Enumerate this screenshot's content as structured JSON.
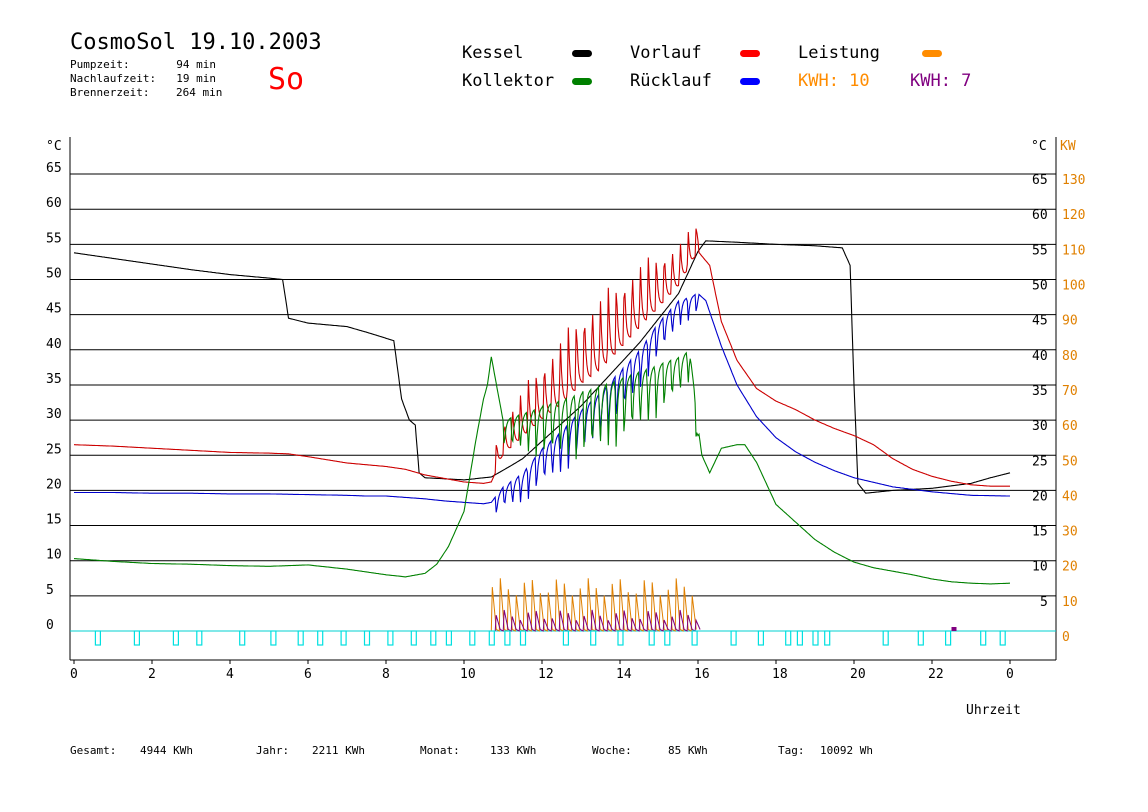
{
  "header": {
    "title": "CosmoSol 19.10.2003",
    "day": "So",
    "stats": [
      {
        "label": "Pumpzeit:",
        "value": "94 min"
      },
      {
        "label": "Nachlaufzeit:",
        "value": "19 min"
      },
      {
        "label": "Brennerzeit:",
        "value": "264 min"
      }
    ]
  },
  "legend": {
    "kessel": "Kessel",
    "vorlauf": "Vorlauf",
    "leistung": "Leistung",
    "kollektor": "Kollektor",
    "ruecklauf": "Rücklauf",
    "kwh1": "KWH: 10",
    "kwh2": "KWH: 7"
  },
  "colors": {
    "kessel": "#000000",
    "vorlauf": "#ff0000",
    "vorlauf_line": "#cc0000",
    "ruecklauf": "#0000ff",
    "ruecklauf_line": "#0000cc",
    "kollektor": "#008000",
    "leistung": "#ff8c00",
    "leistung_line": "#e08000",
    "kwh2": "#800080",
    "burner": "#00e0e0",
    "axis_right": "#e08000"
  },
  "footer": [
    {
      "label": "Gesamt:",
      "value": "4944 KWh"
    },
    {
      "label": "Jahr:",
      "value": "2211 KWh"
    },
    {
      "label": "Monat:",
      "value": "133 KWh"
    },
    {
      "label": "Woche:",
      "value": "85 KWh"
    },
    {
      "label": "Tag:",
      "value": "10092 Wh"
    }
  ],
  "chart_data": {
    "type": "line",
    "xlabel": "Uhrzeit",
    "ylabel_left": "°C",
    "ylabel_right_c": "°C",
    "ylabel_right_kw": "KW",
    "xlim": [
      0,
      24
    ],
    "ylim": [
      0,
      70
    ],
    "ylim_right_kw": [
      0,
      140
    ],
    "x_ticks": [
      "0",
      "2",
      "4",
      "6",
      "8",
      "10",
      "12",
      "14",
      "16",
      "18",
      "20",
      "22",
      "0"
    ],
    "y_ticks_left": [
      "0",
      "5",
      "10",
      "15",
      "20",
      "25",
      "30",
      "35",
      "40",
      "45",
      "50",
      "55",
      "60",
      "65"
    ],
    "y_ticks_right_c": [
      "5",
      "10",
      "15",
      "20",
      "25",
      "30",
      "35",
      "40",
      "45",
      "50",
      "55",
      "60",
      "65"
    ],
    "y_ticks_right_kw": [
      "0",
      "10",
      "20",
      "30",
      "40",
      "50",
      "60",
      "70",
      "80",
      "90",
      "100",
      "110",
      "120",
      "130"
    ],
    "grid": true,
    "series": [
      {
        "name": "Kessel",
        "color_key": "kessel",
        "x": [
          0,
          1,
          2,
          3,
          4,
          5,
          5.35,
          5.5,
          6,
          7,
          7.5,
          8.2,
          8.4,
          8.6,
          8.75,
          8.85,
          9,
          10,
          10.7,
          11.2,
          11.5,
          12,
          12.5,
          13,
          13.5,
          14,
          14.5,
          15,
          15.5,
          16,
          16.2,
          17,
          18,
          19,
          19.7,
          19.9,
          20,
          20.1,
          20.3,
          21,
          22,
          23,
          23.5,
          24
        ],
        "y": [
          53.8,
          53,
          52.2,
          51.4,
          50.7,
          50.2,
          50,
          44.5,
          43.8,
          43.3,
          42.5,
          41.3,
          33,
          30,
          29.3,
          22.5,
          21.8,
          21.5,
          21.9,
          23.5,
          24.5,
          27,
          29.5,
          32,
          35,
          38,
          41,
          44.5,
          48,
          54,
          55.5,
          55.3,
          55,
          54.8,
          54.5,
          52,
          35,
          21,
          19.6,
          20,
          20.3,
          21,
          21.8,
          22.5
        ]
      },
      {
        "name": "Vorlauf",
        "color_key": "vorlauf_line",
        "x": [
          0,
          1,
          2,
          3,
          4,
          5,
          5.5,
          6,
          7,
          8,
          8.5,
          9,
          9.5,
          10,
          10.5,
          10.7,
          11,
          11.5,
          12,
          12.5,
          13,
          13.5,
          14,
          14.5,
          15,
          15.5,
          16,
          16.3,
          16.6,
          17,
          17.5,
          18,
          18.5,
          19,
          19.5,
          20,
          20.5,
          21,
          21.5,
          22,
          22.5,
          23,
          23.5,
          24
        ],
        "y": [
          26.5,
          26.3,
          26,
          25.7,
          25.4,
          25.3,
          25.2,
          24.8,
          23.9,
          23.4,
          23,
          22.2,
          21.7,
          21.2,
          21,
          21.2,
          25,
          27.5,
          30,
          32,
          35,
          37,
          40,
          43,
          46,
          49,
          54,
          52,
          44,
          38.5,
          34.5,
          32.7,
          31.5,
          30,
          28.8,
          27.8,
          26.5,
          24.5,
          23,
          22,
          21.3,
          20.8,
          20.6,
          20.6
        ],
        "spikes": {
          "from": 10.8,
          "to": 16,
          "step": 0.205,
          "amp": 11
        }
      },
      {
        "name": "Rücklauf",
        "color_key": "ruecklauf_line",
        "x": [
          0,
          1,
          2,
          3,
          4,
          5,
          6,
          7,
          7.5,
          8,
          8.5,
          9,
          9.5,
          10,
          10.5,
          10.7,
          11,
          11.5,
          12,
          12.5,
          13,
          13.5,
          14,
          14.5,
          15,
          15.5,
          16,
          16.2,
          16.6,
          17,
          17.5,
          18,
          18.5,
          19,
          19.5,
          20,
          21,
          22,
          23,
          24
        ],
        "y": [
          19.7,
          19.7,
          19.6,
          19.6,
          19.5,
          19.5,
          19.4,
          19.3,
          19.2,
          19.2,
          19,
          18.8,
          18.5,
          18.3,
          18.1,
          18.3,
          20.5,
          22.5,
          26,
          28.5,
          31.5,
          34,
          37,
          40,
          44,
          47,
          48,
          47,
          40.5,
          35,
          30.5,
          27.5,
          25.5,
          24,
          22.8,
          21.8,
          20.5,
          19.8,
          19.3,
          19.2
        ],
        "spikes": {
          "from": 10.8,
          "to": 16,
          "step": 0.205,
          "amp": -7
        }
      },
      {
        "name": "Kollektor",
        "color_key": "kollektor",
        "x": [
          0,
          1,
          2,
          3,
          4,
          5,
          5.5,
          6,
          6.5,
          7,
          7.5,
          8,
          8.5,
          9,
          9.3,
          9.6,
          10,
          10.3,
          10.5,
          10.6,
          10.7,
          11,
          11.5,
          12,
          12.5,
          13,
          13.5,
          14,
          14.5,
          15,
          15.5,
          15.8,
          16,
          16.1,
          16.3,
          16.6,
          17,
          17.2,
          17.5,
          18,
          18.5,
          19,
          19.5,
          20,
          20.5,
          21,
          21.5,
          22,
          22.5,
          23,
          23.5,
          24
        ],
        "y": [
          10.3,
          9.9,
          9.6,
          9.5,
          9.3,
          9.2,
          9.3,
          9.4,
          9.1,
          8.8,
          8.4,
          8,
          7.7,
          8.2,
          9.5,
          12,
          17,
          27,
          33,
          35,
          39,
          30,
          31,
          32,
          33,
          34,
          35,
          36,
          37,
          38,
          39,
          40,
          29,
          25,
          22.5,
          26,
          26.5,
          26.5,
          24,
          18,
          15.5,
          13,
          11.2,
          9.8,
          9,
          8.5,
          8,
          7.4,
          7,
          6.8,
          6.7,
          6.8
        ],
        "spikes": {
          "from": 11,
          "to": 16,
          "step": 0.205,
          "amp": -10
        }
      },
      {
        "name": "Leistung",
        "color_key": "leistung_line",
        "spikes": {
          "from": 10.7,
          "to": 16,
          "step": 0.205,
          "min": 10,
          "max": 15
        }
      },
      {
        "name": "KWH: 7",
        "color_key": "kwh2",
        "spikes": {
          "from": 10.8,
          "to": 16.1,
          "step": 0.205,
          "min": 1.5,
          "max": 3
        }
      }
    ],
    "burner_pulses_x": [
      0.6,
      1.6,
      2.6,
      3.2,
      4.3,
      5.1,
      5.8,
      6.3,
      6.9,
      7.5,
      8.1,
      8.7,
      9.2,
      9.6,
      10.2,
      10.7,
      11.1,
      11.5,
      12.6,
      13.3,
      14.0,
      14.8,
      15.2,
      15.9,
      16.9,
      17.6,
      18.3,
      18.6,
      19.0,
      19.3,
      20.8,
      21.7,
      22.4,
      23.3,
      23.8
    ],
    "purple_marker_x": 22.5
  }
}
